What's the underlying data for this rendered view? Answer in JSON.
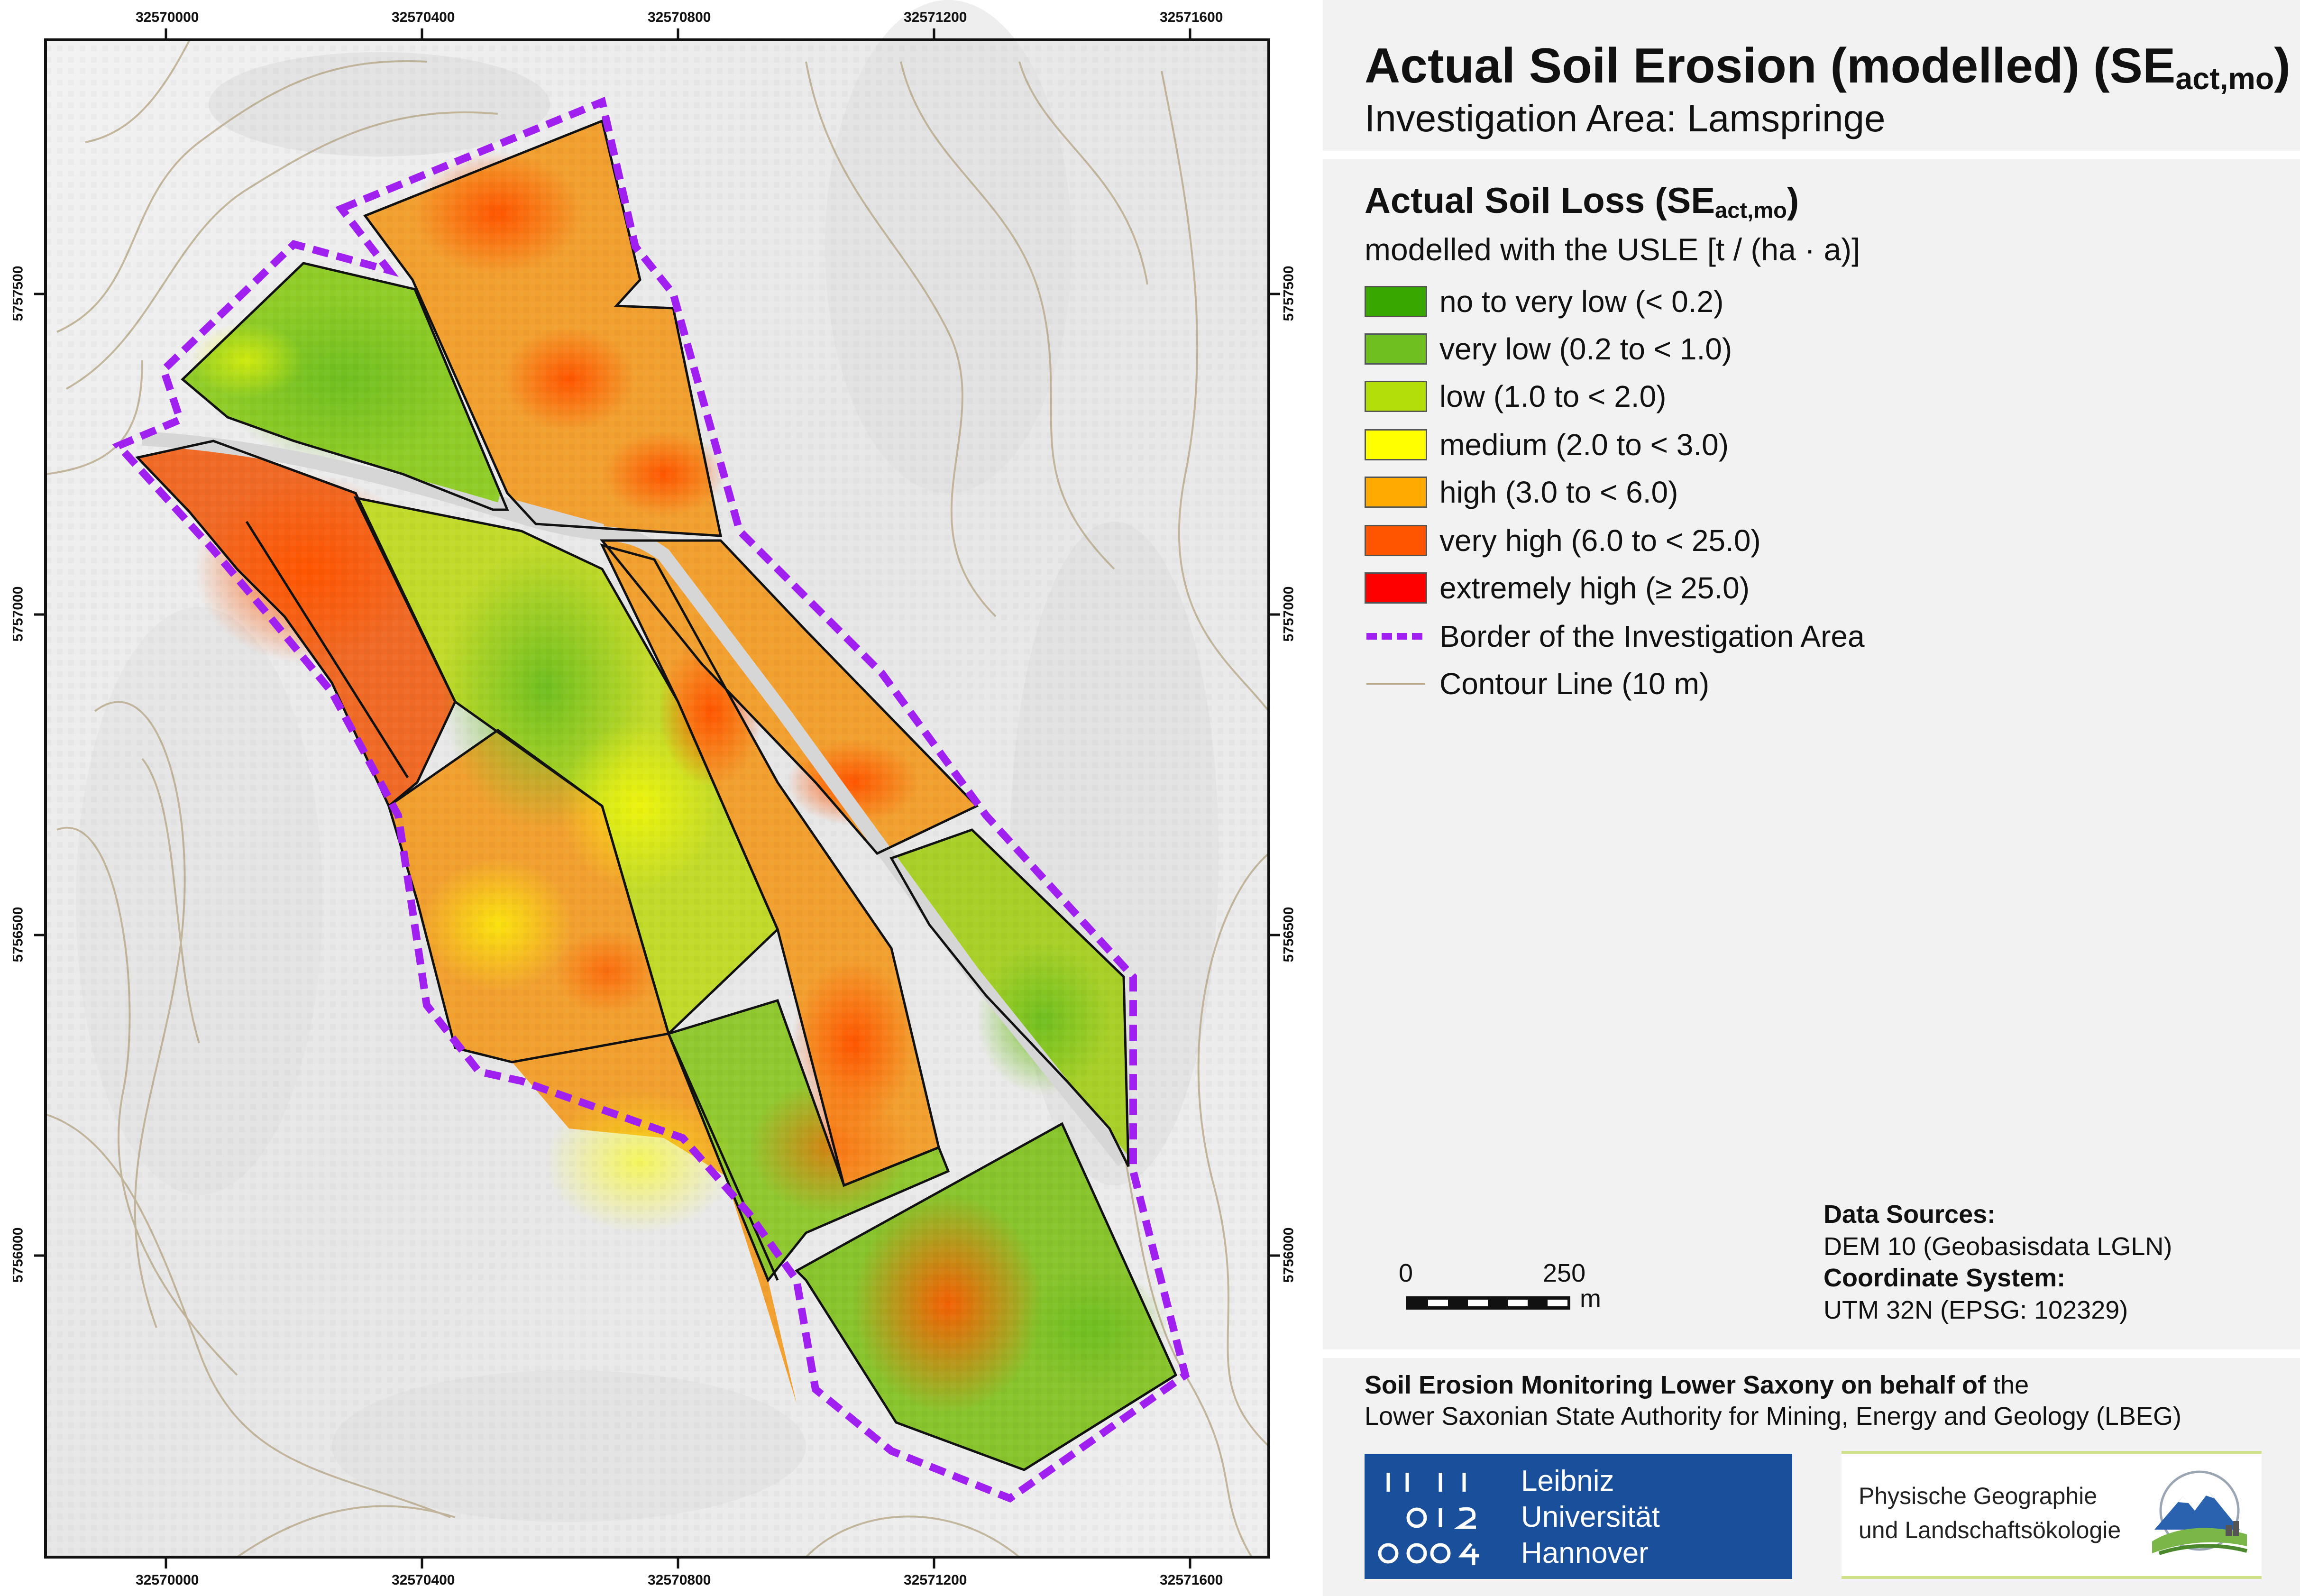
{
  "title": {
    "main": "Actual Soil Erosion (modelled) (SE",
    "main_sub": "act,mo",
    "main_end": ")",
    "subtitle": "Investigation Area: Lamspringe"
  },
  "legend": {
    "title": "Actual Soil Loss (SE",
    "title_sub": "act,mo",
    "title_end": ")",
    "subtitle": "modelled with the USLE [t / (ha · a)]",
    "classes": [
      {
        "label": "no to very low (< 0.2)",
        "color": "#38a800"
      },
      {
        "label": "very low (0.2 to < 1.0)",
        "color": "#70bf20"
      },
      {
        "label": "low (1.0 to < 2.0)",
        "color": "#b2df0a"
      },
      {
        "label": "medium (2.0 to < 3.0)",
        "color": "#ffff00"
      },
      {
        "label": "high (3.0 to < 6.0)",
        "color": "#ffaa00"
      },
      {
        "label": "very high (6.0 to < 25.0)",
        "color": "#ff5500"
      },
      {
        "label": "extremely high (≥ 25.0)",
        "color": "#ff0000"
      }
    ],
    "border_label": "Border of the Investigation Area",
    "border_color": "#a020f0",
    "contour_label": "Contour Line (10 m)",
    "contour_color": "#b8a888"
  },
  "scale_bar": {
    "zero": "0",
    "max": "250",
    "unit": "m"
  },
  "sources": {
    "data_title": "Data Sources:",
    "data_value": "DEM 10 (Geobasisdata LGLN)",
    "crs_title": "Coordinate System:",
    "crs_value": "UTM 32N (EPSG: 102329)"
  },
  "credit": {
    "bold": "Soil Erosion Monitoring Lower Saxony on behalf of",
    "rest": " the",
    "line2": "Lower Saxonian State Authority for Mining, Energy and Geology (LBEG)"
  },
  "logos": {
    "luh": [
      "Leibniz",
      "Universität",
      "Hannover"
    ],
    "luh_color": "#1a4f9c",
    "pg": [
      "Physische Geographie",
      "und Landschaftsökologie"
    ]
  },
  "axis": {
    "x_ticks": [
      "32570000",
      "32570400",
      "32570800",
      "32571200",
      "32571600"
    ],
    "y_ticks": [
      "5757500",
      "5757000",
      "5756500",
      "5756000"
    ]
  }
}
